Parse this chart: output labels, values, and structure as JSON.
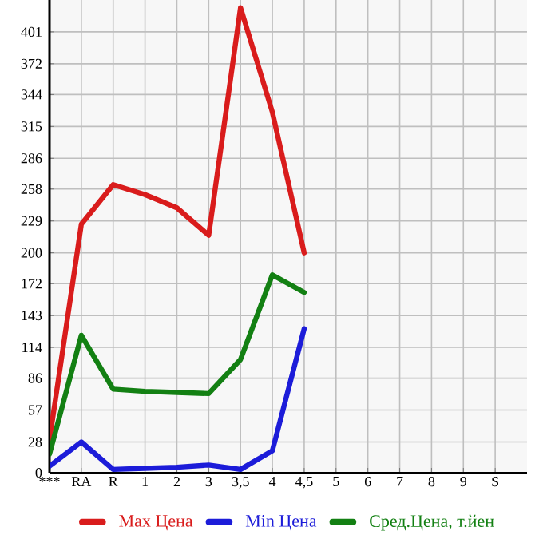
{
  "chart_data": {
    "type": "line",
    "categories": [
      "***",
      "RA",
      "R",
      "1",
      "2",
      "3",
      "3,5",
      "4",
      "4,5",
      "5",
      "6",
      "7",
      "8",
      "9",
      "S"
    ],
    "series": [
      {
        "name": "Max Цена",
        "color": "#d91c1c",
        "values": [
          30,
          226,
          262,
          253,
          241,
          216,
          423,
          328,
          200,
          null,
          null,
          null,
          null,
          null,
          null
        ]
      },
      {
        "name": "Min Цена",
        "color": "#1c1cd9",
        "values": [
          6,
          28,
          3,
          4,
          5,
          7,
          3,
          20,
          131,
          null,
          null,
          null,
          null,
          null,
          null
        ]
      },
      {
        "name": "Сред.Цена, т.йен",
        "color": "#138013",
        "values": [
          17,
          125,
          76,
          74,
          73,
          72,
          103,
          180,
          164,
          null,
          null,
          null,
          null,
          null,
          null
        ]
      }
    ],
    "ylim": [
      0,
      430
    ],
    "yticks": [
      0,
      28,
      57,
      86,
      114,
      143,
      172,
      200,
      229,
      258,
      286,
      315,
      344,
      372,
      401
    ],
    "grid": true,
    "legend": "bottom",
    "marker": "none",
    "line_style": "solid"
  }
}
